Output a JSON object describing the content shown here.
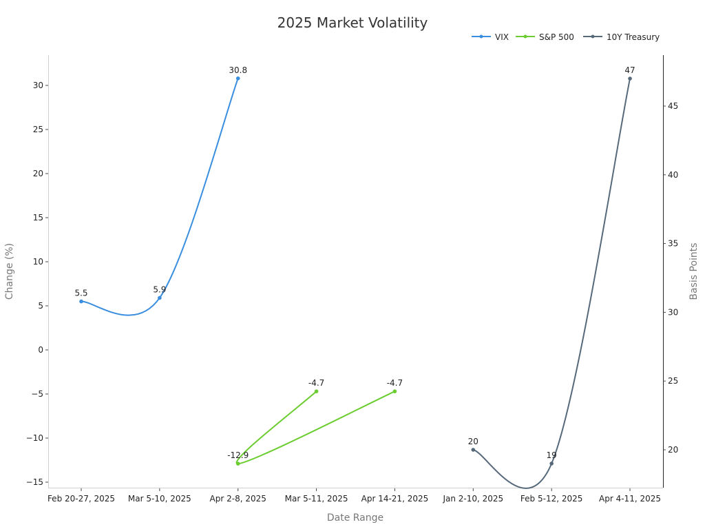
{
  "chart_data": {
    "type": "line",
    "title": "2025 Market Volatility",
    "xlabel": "Date Range",
    "ylabel": "Change (%)",
    "y2label": "Basis Points",
    "categories": [
      "Feb 20-27, 2025",
      "Mar 5-10, 2025",
      "Apr 2-8, 2025",
      "Mar 5-11, 2025",
      "Apr 14-21, 2025",
      "Jan 2-10, 2025",
      "Feb 5-12, 2025",
      "Apr 4-11, 2025"
    ],
    "ylim": [
      -15.5,
      33.5
    ],
    "y2lim": [
      17.2,
      48.7
    ],
    "yticks": [
      -15,
      -10,
      -5,
      0,
      5,
      10,
      15,
      20,
      25,
      30
    ],
    "y2ticks": [
      20,
      25,
      30,
      35,
      40,
      45
    ],
    "grid": false,
    "legend_position": "top-right",
    "series": [
      {
        "name": "VIX",
        "axis": "left",
        "color": "#3a8ee0",
        "points": [
          {
            "category": "Feb 20-27, 2025",
            "value": 5.5,
            "label": "5.5"
          },
          {
            "category": "Mar 5-10, 2025",
            "value": 5.9,
            "label": "5.9"
          },
          {
            "category": "Apr 2-8, 2025",
            "value": 30.8,
            "label": "30.8"
          }
        ]
      },
      {
        "name": "S&P 500",
        "axis": "left",
        "color": "#6acc2e",
        "points": [
          {
            "category": "Mar 5-11, 2025",
            "value": -4.7,
            "label": "-4.7"
          },
          {
            "category": "Apr 2-8, 2025",
            "value": -12.9,
            "label": "-12.9"
          },
          {
            "category": "Apr 14-21, 2025",
            "value": -4.7,
            "label": "-4.7"
          }
        ]
      },
      {
        "name": "10Y Treasury",
        "axis": "right",
        "color": "#56697a",
        "points": [
          {
            "category": "Jan 2-10, 2025",
            "value": 20,
            "label": "20"
          },
          {
            "category": "Feb 5-12, 2025",
            "value": 19,
            "label": "19"
          },
          {
            "category": "Apr 4-11, 2025",
            "value": 47,
            "label": "47"
          }
        ]
      }
    ]
  },
  "legend": {
    "items": [
      {
        "label": "VIX",
        "color": "#3a8ee0"
      },
      {
        "label": "S&P 500",
        "color": "#6acc2e"
      },
      {
        "label": "10Y Treasury",
        "color": "#56697a"
      }
    ]
  }
}
